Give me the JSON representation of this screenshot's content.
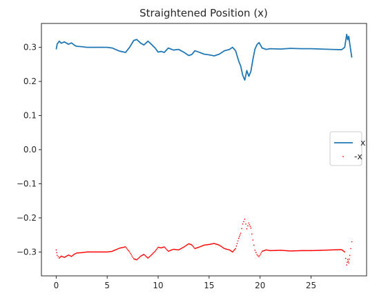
{
  "chart_data": {
    "type": "line",
    "title": "Straightened Position (x)",
    "xlabel": "",
    "ylabel": "",
    "xlim": [
      -1.45,
      30.45
    ],
    "ylim": [
      -0.37,
      0.37
    ],
    "xticks": [
      0,
      5,
      10,
      15,
      20,
      25
    ],
    "yticks": [
      -0.3,
      -0.2,
      -0.1,
      0.0,
      0.1,
      0.2,
      0.3
    ],
    "xtick_labels": [
      "0",
      "5",
      "10",
      "15",
      "20",
      "25"
    ],
    "ytick_labels": [
      "−0.3",
      "−0.2",
      "−0.1",
      "0.0",
      "0.1",
      "0.2",
      "0.3"
    ],
    "grid": false,
    "legend": "center-right",
    "series": [
      {
        "name": "x",
        "style": "line",
        "color": "#1f77b4",
        "x": [
          0.0,
          0.1,
          0.3,
          0.5,
          0.8,
          1.2,
          1.5,
          1.8,
          2.0,
          2.5,
          3.0,
          4.0,
          5.0,
          5.5,
          5.8,
          6.2,
          6.8,
          7.2,
          7.6,
          7.9,
          8.3,
          8.6,
          9.0,
          9.3,
          9.7,
          10.0,
          10.3,
          10.6,
          11.0,
          11.5,
          12.0,
          12.5,
          13.0,
          13.3,
          13.6,
          14.0,
          14.5,
          15.0,
          15.5,
          16.0,
          16.5,
          17.0,
          17.3,
          17.6,
          17.9,
          18.1,
          18.3,
          18.5,
          18.7,
          18.9,
          19.1,
          19.3,
          19.5,
          19.7,
          19.9,
          20.2,
          20.6,
          21.0,
          22.0,
          23.0,
          24.0,
          25.0,
          26.0,
          27.0,
          28.0,
          28.3,
          28.5,
          28.6,
          28.7,
          28.8,
          29.0
        ],
        "y": [
          0.294,
          0.31,
          0.318,
          0.312,
          0.316,
          0.309,
          0.313,
          0.306,
          0.303,
          0.302,
          0.3,
          0.3,
          0.3,
          0.298,
          0.294,
          0.289,
          0.285,
          0.3,
          0.32,
          0.323,
          0.312,
          0.307,
          0.318,
          0.31,
          0.298,
          0.286,
          0.288,
          0.285,
          0.298,
          0.292,
          0.294,
          0.286,
          0.276,
          0.279,
          0.29,
          0.286,
          0.28,
          0.278,
          0.275,
          0.28,
          0.29,
          0.294,
          0.3,
          0.29,
          0.26,
          0.245,
          0.218,
          0.204,
          0.232,
          0.215,
          0.23,
          0.265,
          0.295,
          0.308,
          0.314,
          0.298,
          0.294,
          0.296,
          0.295,
          0.297,
          0.296,
          0.296,
          0.295,
          0.294,
          0.293,
          0.3,
          0.338,
          0.322,
          0.332,
          0.31,
          0.27
        ]
      },
      {
        "name": "-x",
        "style": "points",
        "color": "#ff0000",
        "x": [
          0.0,
          0.1,
          0.3,
          0.5,
          0.8,
          1.2,
          1.5,
          1.8,
          2.0,
          2.5,
          3.0,
          4.0,
          5.0,
          5.5,
          5.8,
          6.2,
          6.8,
          7.2,
          7.6,
          7.9,
          8.3,
          8.6,
          9.0,
          9.3,
          9.7,
          10.0,
          10.3,
          10.6,
          11.0,
          11.5,
          12.0,
          12.5,
          13.0,
          13.3,
          13.6,
          14.0,
          14.5,
          15.0,
          15.5,
          16.0,
          16.5,
          17.0,
          17.3,
          17.6,
          17.9,
          18.1,
          18.3,
          18.5,
          18.7,
          18.9,
          19.1,
          19.3,
          19.5,
          19.7,
          19.9,
          20.2,
          20.6,
          21.0,
          22.0,
          23.0,
          24.0,
          25.0,
          26.0,
          27.0,
          28.0,
          28.3,
          28.5,
          28.6,
          28.7,
          28.8,
          29.0
        ],
        "y": [
          -0.294,
          -0.31,
          -0.318,
          -0.312,
          -0.316,
          -0.309,
          -0.313,
          -0.306,
          -0.303,
          -0.302,
          -0.3,
          -0.3,
          -0.3,
          -0.298,
          -0.294,
          -0.289,
          -0.285,
          -0.3,
          -0.32,
          -0.323,
          -0.312,
          -0.307,
          -0.318,
          -0.31,
          -0.298,
          -0.286,
          -0.288,
          -0.285,
          -0.298,
          -0.292,
          -0.294,
          -0.286,
          -0.276,
          -0.279,
          -0.29,
          -0.286,
          -0.28,
          -0.278,
          -0.275,
          -0.28,
          -0.29,
          -0.294,
          -0.3,
          -0.29,
          -0.26,
          -0.245,
          -0.218,
          -0.204,
          -0.232,
          -0.215,
          -0.23,
          -0.265,
          -0.295,
          -0.308,
          -0.314,
          -0.298,
          -0.294,
          -0.296,
          -0.295,
          -0.297,
          -0.296,
          -0.296,
          -0.295,
          -0.294,
          -0.293,
          -0.3,
          -0.338,
          -0.322,
          -0.332,
          -0.31,
          -0.27
        ]
      }
    ]
  }
}
